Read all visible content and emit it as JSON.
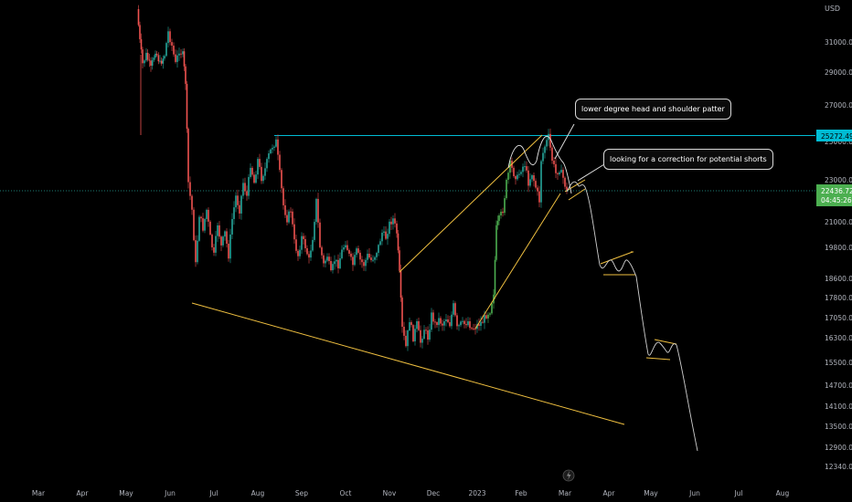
{
  "chart_data": {
    "type": "candlestick",
    "currency": "USD",
    "x_ticks": [
      "Mar",
      "Apr",
      "May",
      "Jun",
      "Jul",
      "Aug",
      "Sep",
      "Oct",
      "Nov",
      "Dec",
      "2023",
      "Feb",
      "Mar",
      "Apr",
      "May",
      "Jun",
      "Jul",
      "Aug"
    ],
    "y_ticks": [
      "31000.00",
      "29000.00",
      "27000.00",
      "25000.00",
      "23000.00",
      "21000.00",
      "19800.00",
      "18600.00",
      "17800.00",
      "17050.00",
      "16300.00",
      "15500.00",
      "14700.00",
      "14100.00",
      "13500.00",
      "12900.00",
      "12340.00"
    ],
    "resistance_level": "25272.49",
    "last_price": "22436.72",
    "countdown": "04:45:26",
    "annotations": [
      {
        "id": "hs",
        "text": "lower degree head and shoulder patter"
      },
      {
        "id": "corr",
        "text": "looking for a correction for potential shorts"
      }
    ],
    "colors": {
      "up": "#26a69a",
      "up_alt": "#4caf50",
      "down": "#ef5350",
      "resistance": "#00bcd4",
      "price_line": "#26a69a",
      "pattern": "#f0c040",
      "projection": "#d0d0d0"
    }
  }
}
